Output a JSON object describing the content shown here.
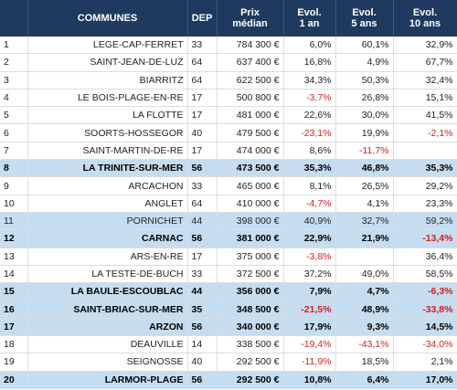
{
  "table": {
    "header": [
      "COMMUNES",
      "DEP",
      "Prix\nmédian",
      "Evol.\n1 an",
      "Evol.\n5 ans",
      "Evol.\n10 ans"
    ],
    "rows": [
      {
        "rank": 1,
        "commune": "LEGE-CAP-FERRET",
        "dep": 33,
        "prix": "784 300 €",
        "evol_1": "6,0%",
        "evol_5": "60,1%",
        "evol_10": "32,9%",
        "style": "normal"
      },
      {
        "rank": 2,
        "commune": "SAINT-JEAN-DE-LUZ",
        "dep": 64,
        "prix": "637 400 €",
        "evol_1": "16,8%",
        "evol_5": "4,9%",
        "evol_10": "67,7%",
        "style": "normal"
      },
      {
        "rank": 3,
        "commune": "BIARRITZ",
        "dep": 64,
        "prix": "622 500 €",
        "evol_1": "34,3%",
        "evol_5": "50,3%",
        "evol_10": "32,4%",
        "style": "normal"
      },
      {
        "rank": 4,
        "commune": "LE BOIS-PLAGE-EN-RE",
        "dep": 17,
        "prix": "500 800 €",
        "evol_1": "-3,7%",
        "evol_5": "26,8%",
        "evol_10": "15,1%",
        "style": "normal"
      },
      {
        "rank": 5,
        "commune": "LA FLOTTE",
        "dep": 17,
        "prix": "481 000 €",
        "evol_1": "22,6%",
        "evol_5": "30,0%",
        "evol_10": "41,5%",
        "style": "normal"
      },
      {
        "rank": 6,
        "commune": "SOORTS-HOSSEGOR",
        "dep": 40,
        "prix": "479 500 €",
        "evol_1": "-23,1%",
        "evol_5": "19,9%",
        "evol_10": "-2,1%",
        "style": "normal"
      },
      {
        "rank": 7,
        "commune": "SAINT-MARTIN-DE-RE",
        "dep": 17,
        "prix": "474 000 €",
        "evol_1": "8,6%",
        "evol_5": "-11,7%",
        "evol_10": null,
        "style": "normal"
      },
      {
        "rank": 8,
        "commune": "LA TRINITE-SUR-MER",
        "dep": 56,
        "prix": "473 500 €",
        "evol_1": "35,3%",
        "evol_5": "46,8%",
        "evol_10": "35,3%",
        "style": "bold"
      },
      {
        "rank": 9,
        "commune": "ARCACHON",
        "dep": 33,
        "prix": "465 000 €",
        "evol_1": "8,1%",
        "evol_5": "26,5%",
        "evol_10": "29,2%",
        "style": "normal"
      },
      {
        "rank": 10,
        "commune": "ANGLET",
        "dep": 64,
        "prix": "410 000 €",
        "evol_1": "-4,7%",
        "evol_5": "4,1%",
        "evol_10": "23,3%",
        "style": "normal"
      },
      {
        "rank": 11,
        "commune": "PORNICHET",
        "dep": 44,
        "prix": "398 000 €",
        "evol_1": "40,9%",
        "evol_5": "32,7%",
        "evol_10": "59,2%",
        "style": "highlight"
      },
      {
        "rank": 12,
        "commune": "CARNAC",
        "dep": 56,
        "prix": "381 000 €",
        "evol_1": "22,9%",
        "evol_5": "21,9%",
        "evol_10": "-13,4%",
        "style": "bold"
      },
      {
        "rank": 13,
        "commune": "ARS-EN-RE",
        "dep": 17,
        "prix": "375 000 €",
        "evol_1": "-3,8%",
        "evol_5": null,
        "evol_10": "36,4%",
        "style": "normal"
      },
      {
        "rank": 14,
        "commune": "LA TESTE-DE-BUCH",
        "dep": 33,
        "prix": "372 500 €",
        "evol_1": "37,2%",
        "evol_5": "49,0%",
        "evol_10": "58,5%",
        "style": "normal"
      },
      {
        "rank": 15,
        "commune": "LA BAULE-ESCOUBLAC",
        "dep": 44,
        "prix": "356 000 €",
        "evol_1": "7,9%",
        "evol_5": "4,7%",
        "evol_10": "-6,3%",
        "style": "bold"
      },
      {
        "rank": 16,
        "commune": "SAINT-BRIAC-SUR-MER",
        "dep": 35,
        "prix": "348 500 €",
        "evol_1": "-21,5%",
        "evol_5": "48,9%",
        "evol_10": "-33,8%",
        "style": "bold"
      },
      {
        "rank": 17,
        "commune": "ARZON",
        "dep": 56,
        "prix": "340 000 €",
        "evol_1": "17,9%",
        "evol_5": "9,3%",
        "evol_10": "14,5%",
        "style": "bold"
      },
      {
        "rank": 18,
        "commune": "DEAUVILLE",
        "dep": 14,
        "prix": "338 500 €",
        "evol_1": "-19,4%",
        "evol_5": "-43,1%",
        "evol_10": "-34,0%",
        "style": "normal"
      },
      {
        "rank": 19,
        "commune": "SEIGNOSSE",
        "dep": 40,
        "prix": "292 500 €",
        "evol_1": "-11,9%",
        "evol_5": "18,5%",
        "evol_10": "2,1%",
        "style": "normal"
      },
      {
        "rank": 20,
        "commune": "LARMOR-PLAGE",
        "dep": 56,
        "prix": "292 500 €",
        "evol_1": "10,8%",
        "evol_5": "6,4%",
        "evol_10": "17,0%",
        "style": "bold"
      }
    ]
  }
}
